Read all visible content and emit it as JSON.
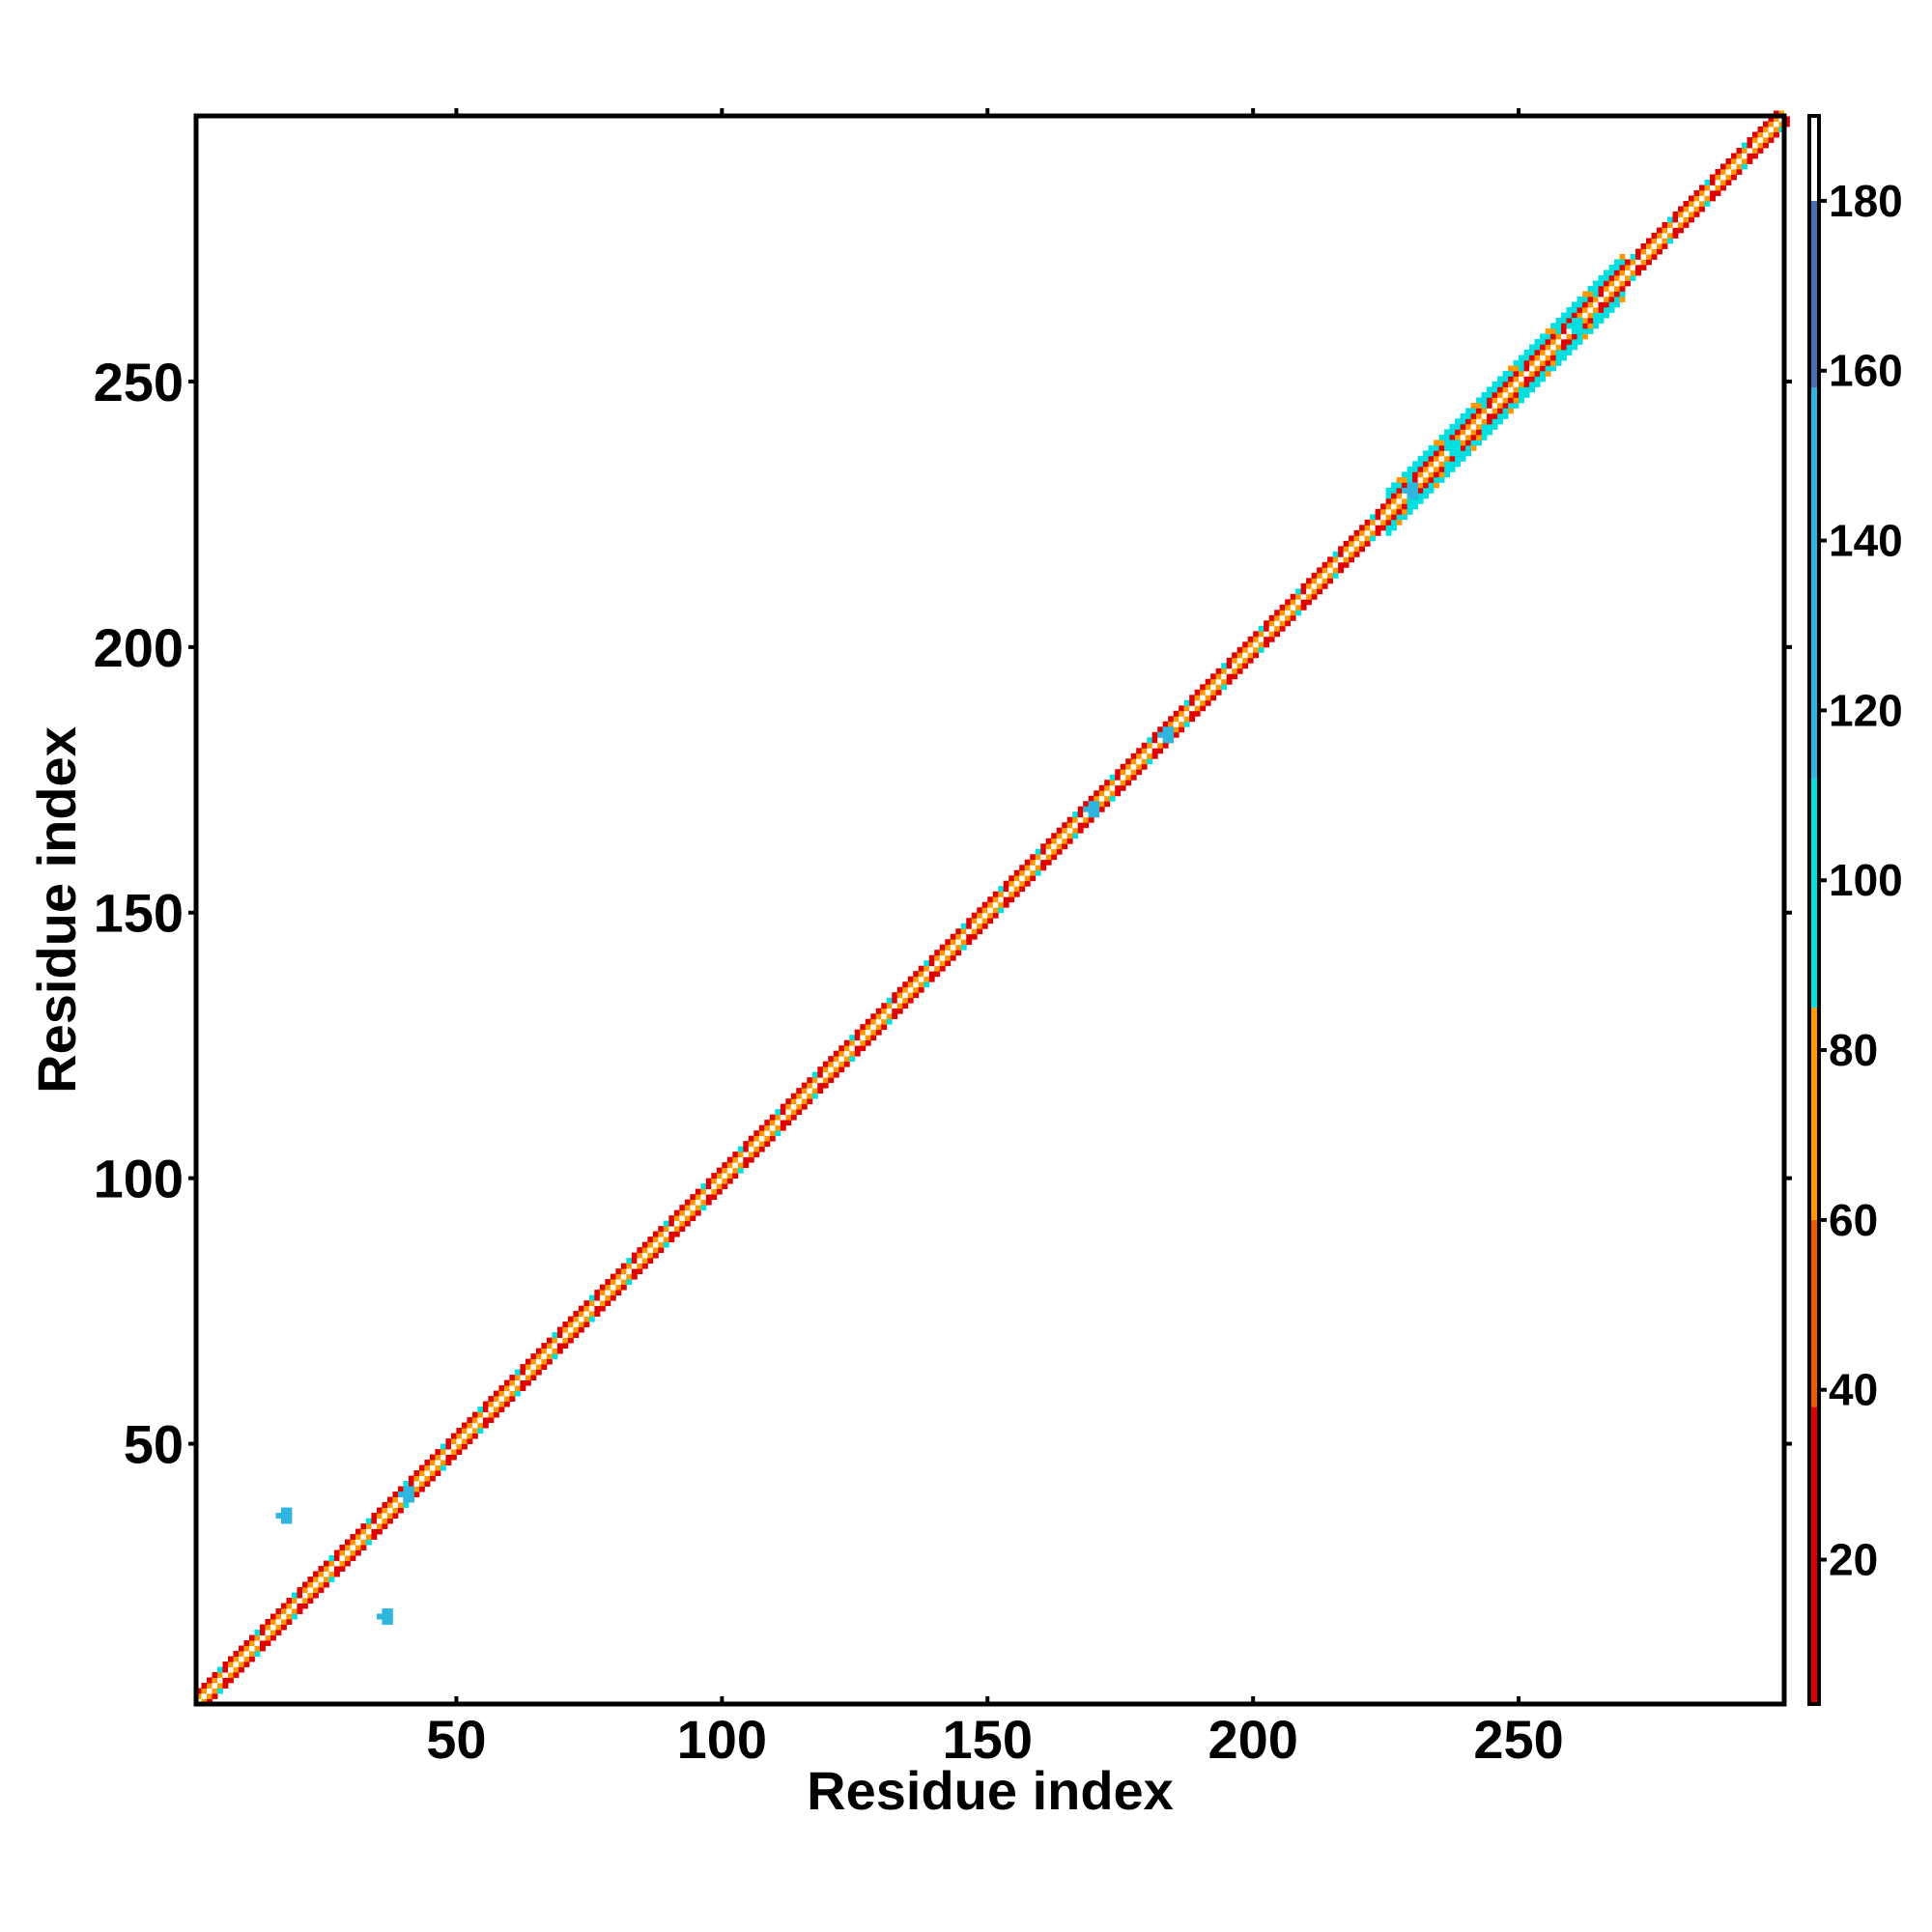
{
  "chart_data": {
    "type": "heatmap",
    "title": "",
    "xlabel": "Residue index",
    "ylabel": "Residue index",
    "xlim": [
      1,
      300
    ],
    "ylim": [
      1,
      300
    ],
    "x_ticks": [
      50,
      100,
      150,
      200,
      250
    ],
    "y_ticks": [
      50,
      100,
      150,
      200,
      250
    ],
    "grid": false,
    "colorbar": {
      "range": [
        3,
        190
      ],
      "ticks": [
        20,
        40,
        60,
        80,
        100,
        120,
        140,
        160,
        180
      ],
      "bands": [
        {
          "from": 3,
          "to": 38,
          "color": "#e00000"
        },
        {
          "from": 38,
          "to": 60,
          "color": "#ef5a00"
        },
        {
          "from": 60,
          "to": 85,
          "color": "#ff9900"
        },
        {
          "from": 85,
          "to": 112,
          "color": "#00e0e0"
        },
        {
          "from": 112,
          "to": 158,
          "color": "#2eb6e0"
        },
        {
          "from": 158,
          "to": 180,
          "color": "#4a6fb0"
        },
        {
          "from": 180,
          "to": 190,
          "color": "#ffffff"
        }
      ]
    },
    "diagonal_band": {
      "half_widths": [
        {
          "from": 1,
          "to": 225,
          "width": 2
        },
        {
          "from": 225,
          "to": 270,
          "width": 4
        },
        {
          "from": 270,
          "to": 300,
          "width": 2
        }
      ],
      "pattern": [
        "#ffffff",
        "#ff9900",
        "#e00000",
        "#00e0e0"
      ]
    },
    "off_diagonal_clusters": [
      {
        "x": 17,
        "y": 36,
        "value": 130
      },
      {
        "x": 36,
        "y": 17,
        "value": 130
      },
      {
        "x": 40,
        "y": 40,
        "value": 120
      },
      {
        "x": 169,
        "y": 169,
        "value": 130
      },
      {
        "x": 183,
        "y": 183,
        "value": 130
      },
      {
        "x": 229,
        "y": 229,
        "value": 130
      },
      {
        "x": 237,
        "y": 237,
        "value": 100
      },
      {
        "x": 260,
        "y": 260,
        "value": 100
      }
    ]
  }
}
